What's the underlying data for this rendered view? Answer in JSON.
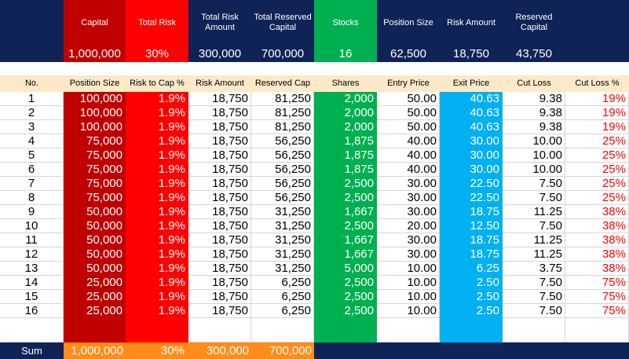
{
  "colors": {
    "navy": "#0f2356",
    "dark_red": "#c00000",
    "red": "#ff0000",
    "green": "#00b050",
    "sky_blue": "#00b0f0",
    "orange": "#ff8c1a",
    "header_row": "#fde9c8",
    "red_text": "#ff0000"
  },
  "summary": {
    "labels": [
      "Capital",
      "Total Risk",
      "Total Risk Amount",
      "Total Reserved Capital",
      "Stocks",
      "Position Size",
      "Risk Amount",
      "Reserved Capital"
    ],
    "values": [
      "1,000,000",
      "30%",
      "300,000",
      "700,000",
      "16",
      "62,500",
      "18,750",
      "43,750"
    ]
  },
  "table": {
    "columns": [
      "No.",
      "Position Size",
      "Risk to Cap %",
      "Risk Amount",
      "Reserved Cap",
      "Shares",
      "Entry Price",
      "Exit Price",
      "Cut Loss",
      "Cut Loss %"
    ],
    "rows": [
      [
        "1",
        "100,000",
        "1.9%",
        "18,750",
        "81,250",
        "2,000",
        "50.00",
        "40.63",
        "9.38",
        "19%"
      ],
      [
        "2",
        "100,000",
        "1.9%",
        "18,750",
        "81,250",
        "2,000",
        "50.00",
        "40.63",
        "9.38",
        "19%"
      ],
      [
        "3",
        "100,000",
        "1.9%",
        "18,750",
        "81,250",
        "2,000",
        "50.00",
        "40.63",
        "9.38",
        "19%"
      ],
      [
        "4",
        "75,000",
        "1.9%",
        "18,750",
        "56,250",
        "1,875",
        "40.00",
        "30.00",
        "10.00",
        "25%"
      ],
      [
        "5",
        "75,000",
        "1.9%",
        "18,750",
        "56,250",
        "1,875",
        "40.00",
        "30.00",
        "10.00",
        "25%"
      ],
      [
        "6",
        "75,000",
        "1.9%",
        "18,750",
        "56,250",
        "1,875",
        "40.00",
        "30.00",
        "10.00",
        "25%"
      ],
      [
        "7",
        "75,000",
        "1.9%",
        "18,750",
        "56,250",
        "2,500",
        "30.00",
        "22.50",
        "7.50",
        "25%"
      ],
      [
        "8",
        "75,000",
        "1.9%",
        "18,750",
        "56,250",
        "2,500",
        "30.00",
        "22.50",
        "7.50",
        "25%"
      ],
      [
        "9",
        "50,000",
        "1.9%",
        "18,750",
        "31,250",
        "1,667",
        "30.00",
        "18.75",
        "11.25",
        "38%"
      ],
      [
        "10",
        "50,000",
        "1.9%",
        "18,750",
        "31,250",
        "2,500",
        "20.00",
        "12.50",
        "7.50",
        "38%"
      ],
      [
        "11",
        "50,000",
        "1.9%",
        "18,750",
        "31,250",
        "1,667",
        "30.00",
        "18.75",
        "11.25",
        "38%"
      ],
      [
        "12",
        "50,000",
        "1.9%",
        "18,750",
        "31,250",
        "1,667",
        "30.00",
        "18.75",
        "11.25",
        "38%"
      ],
      [
        "13",
        "50,000",
        "1.9%",
        "18,750",
        "31,250",
        "5,000",
        "10.00",
        "6.25",
        "3.75",
        "38%"
      ],
      [
        "14",
        "25,000",
        "1.9%",
        "18,750",
        "6,250",
        "2,500",
        "10.00",
        "2.50",
        "7.50",
        "75%"
      ],
      [
        "15",
        "25,000",
        "1.9%",
        "18,750",
        "6,250",
        "2,500",
        "10.00",
        "2.50",
        "7.50",
        "75%"
      ],
      [
        "16",
        "25,000",
        "1.9%",
        "18,750",
        "6,250",
        "2,500",
        "10.00",
        "2.50",
        "7.50",
        "75%"
      ]
    ]
  },
  "sum_row": {
    "label": "Sum",
    "position_size": "1,000,000",
    "risk_pct": "30%",
    "risk_amount": "300,000",
    "reserved_cap": "700,000"
  }
}
